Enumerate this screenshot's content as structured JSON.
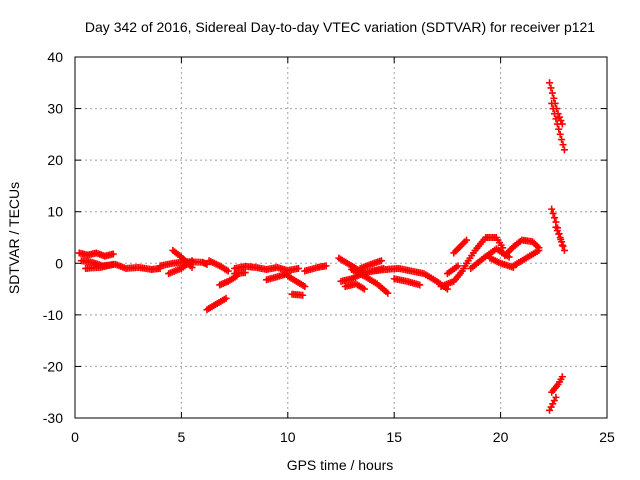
{
  "chart_data": {
    "type": "scatter",
    "title": "Day 342 of 2016, Sidereal Day-to-day VTEC variation (SDTVAR) for receiver p121",
    "xlabel": "GPS time / hours",
    "ylabel": "SDTVAR / TECUs",
    "xlim": [
      0,
      25
    ],
    "ylim": [
      -30,
      40
    ],
    "xticks": [
      0,
      5,
      10,
      15,
      20,
      25
    ],
    "yticks": [
      -30,
      -20,
      -10,
      0,
      10,
      20,
      30,
      40
    ],
    "xtick_labels": [
      "0",
      "5",
      "10",
      "15",
      "20",
      "25"
    ],
    "ytick_labels": [
      "-30",
      "-20",
      "-10",
      "0",
      "10",
      "20",
      "30",
      "40"
    ],
    "grid": true,
    "marker": "plus",
    "series": [
      {
        "name": "SDTVAR",
        "color": "#ff0000",
        "segments": [
          {
            "x": [
              0.2,
              0.6,
              1.0,
              1.4,
              1.8
            ],
            "y": [
              2.0,
              1.6,
              2.0,
              1.4,
              1.8
            ]
          },
          {
            "x": [
              0.3,
              0.8,
              1.3,
              1.9,
              2.4,
              3.0,
              3.6,
              4.0
            ],
            "y": [
              0.5,
              0.2,
              -0.5,
              -0.2,
              -1.0,
              -0.8,
              -1.2,
              -1.0
            ]
          },
          {
            "x": [
              0.5,
              1.2,
              1.8
            ],
            "y": [
              -1.0,
              -0.8,
              -0.2
            ]
          },
          {
            "x": [
              4.0,
              4.6,
              5.2,
              6.0,
              6.2
            ],
            "y": [
              -0.5,
              0.0,
              0.3,
              0.2,
              -0.2
            ]
          },
          {
            "x": [
              4.6,
              5.0,
              5.5
            ],
            "y": [
              2.5,
              1.2,
              -0.8
            ]
          },
          {
            "x": [
              4.4,
              5.0,
              5.5
            ],
            "y": [
              -2.0,
              -1.0,
              0.5
            ]
          },
          {
            "x": [
              6.2,
              6.6,
              7.1
            ],
            "y": [
              -9.0,
              -8.0,
              -6.8
            ]
          },
          {
            "x": [
              6.3,
              6.8,
              7.2
            ],
            "y": [
              0.5,
              -0.5,
              -1.5
            ]
          },
          {
            "x": [
              6.8,
              7.2,
              7.6
            ],
            "y": [
              -4.2,
              -3.5,
              -2.5
            ]
          },
          {
            "x": [
              7.5,
              8.0,
              8.5,
              9.0,
              9.5,
              10.0,
              10.5
            ],
            "y": [
              -1.0,
              -0.6,
              -0.8,
              -1.2,
              -0.8,
              -1.4,
              -1.0
            ]
          },
          {
            "x": [
              7.5,
              8.0
            ],
            "y": [
              -2.0,
              -1.8
            ]
          },
          {
            "x": [
              9.0,
              9.6,
              10.0
            ],
            "y": [
              -3.2,
              -2.5,
              -2.0
            ]
          },
          {
            "x": [
              10.0,
              10.4,
              10.8
            ],
            "y": [
              -2.5,
              -3.5,
              -4.5
            ]
          },
          {
            "x": [
              10.2,
              10.7
            ],
            "y": [
              -6.0,
              -6.2
            ]
          },
          {
            "x": [
              10.8,
              11.4,
              11.8
            ],
            "y": [
              -1.5,
              -0.8,
              -0.5
            ]
          },
          {
            "x": [
              12.4,
              12.8,
              13.2,
              13.6
            ],
            "y": [
              1.0,
              0.0,
              -1.0,
              -2.0
            ]
          },
          {
            "x": [
              12.5,
              13.0,
              13.5,
              14.0,
              14.5
            ],
            "y": [
              -3.5,
              -3.0,
              -2.0,
              -1.5,
              -1.0
            ]
          },
          {
            "x": [
              12.7,
              13.2,
              13.6
            ],
            "y": [
              -4.5,
              -4.0,
              -5.0
            ]
          },
          {
            "x": [
              13.0,
              13.6,
              14.2,
              14.7
            ],
            "y": [
              -1.2,
              -2.5,
              -4.0,
              -5.8
            ]
          },
          {
            "x": [
              13.4,
              13.9,
              14.4
            ],
            "y": [
              -1.0,
              -0.2,
              0.5
            ]
          },
          {
            "x": [
              14.0,
              14.6,
              15.2,
              15.8,
              16.4,
              17.0,
              17.5
            ],
            "y": [
              -1.5,
              -1.2,
              -1.0,
              -1.5,
              -2.0,
              -3.5,
              -5.0
            ]
          },
          {
            "x": [
              15.0,
              15.6,
              16.2
            ],
            "y": [
              -3.0,
              -3.5,
              -4.2
            ]
          },
          {
            "x": [
              17.2,
              17.8,
              18.2,
              18.4
            ],
            "y": [
              -4.5,
              -3.5,
              -1.5,
              0.0
            ]
          },
          {
            "x": [
              17.5,
              18.0
            ],
            "y": [
              -2.0,
              -0.5
            ]
          },
          {
            "x": [
              17.8,
              18.4
            ],
            "y": [
              2.0,
              4.5
            ]
          },
          {
            "x": [
              18.4,
              18.8,
              19.3,
              19.8,
              20.1
            ],
            "y": [
              0.0,
              2.5,
              5.0,
              5.0,
              3.0
            ]
          },
          {
            "x": [
              18.6,
              19.2,
              19.8,
              20.4
            ],
            "y": [
              -1.0,
              1.0,
              2.8,
              1.2
            ]
          },
          {
            "x": [
              19.5,
              20.0,
              20.6
            ],
            "y": [
              1.0,
              0.0,
              -0.8
            ]
          },
          {
            "x": [
              20.2,
              20.6,
              21.0,
              21.5,
              21.8
            ],
            "y": [
              1.5,
              3.2,
              4.5,
              4.2,
              3.0
            ]
          },
          {
            "x": [
              20.6,
              21.2,
              21.8
            ],
            "y": [
              -0.5,
              1.0,
              2.5
            ]
          },
          {
            "x": [
              22.3,
              22.5,
              22.7,
              22.9
            ],
            "y": [
              35.0,
              32.0,
              29.0,
              27.0
            ]
          },
          {
            "x": [
              22.4,
              22.6,
              22.8,
              23.0
            ],
            "y": [
              31.0,
              28.0,
              25.0,
              22.0
            ]
          },
          {
            "x": [
              22.4,
              22.6,
              22.9
            ],
            "y": [
              10.5,
              8.0,
              3.5
            ]
          },
          {
            "x": [
              22.6,
              22.8,
              23.0
            ],
            "y": [
              7.0,
              5.0,
              2.5
            ]
          },
          {
            "x": [
              22.4,
              22.7,
              22.9
            ],
            "y": [
              -25.0,
              -23.5,
              -22.0
            ]
          },
          {
            "x": [
              22.3,
              22.6
            ],
            "y": [
              -28.5,
              -26.0
            ]
          }
        ]
      }
    ]
  },
  "colors": {
    "series": "#ff0000",
    "axes": "#000000",
    "grid": "#a0a0a0",
    "background": "#ffffff"
  }
}
